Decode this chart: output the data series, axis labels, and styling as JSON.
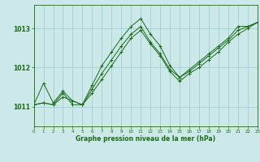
{
  "title": "Graphe pression niveau de la mer (hPa)",
  "xlabel": "Graphe pression niveau de la mer (hPa)",
  "bg_color": "#cce8e8",
  "grid_color": "#9fcfcf",
  "line_color": "#1a6b1a",
  "marker": "+",
  "xlim": [
    0,
    23
  ],
  "ylim": [
    1010.5,
    1013.6
  ],
  "yticks": [
    1011,
    1012,
    1013
  ],
  "xticks": [
    0,
    1,
    2,
    3,
    4,
    5,
    6,
    7,
    8,
    9,
    10,
    11,
    12,
    13,
    14,
    15,
    16,
    17,
    18,
    19,
    20,
    21,
    22,
    23
  ],
  "lines": [
    [
      [
        0,
        1011.05
      ],
      [
        1,
        1011.6
      ],
      [
        2,
        1011.1
      ],
      [
        3,
        1011.4
      ],
      [
        4,
        1011.15
      ],
      [
        5,
        1011.05
      ],
      [
        6,
        1011.55
      ],
      [
        7,
        1012.05
      ],
      [
        8,
        1012.4
      ],
      [
        9,
        1012.75
      ],
      [
        10,
        1013.05
      ],
      [
        11,
        1013.25
      ],
      [
        12,
        1012.85
      ],
      [
        13,
        1012.55
      ],
      [
        14,
        1012.05
      ],
      [
        15,
        1011.75
      ],
      [
        16,
        1011.95
      ],
      [
        17,
        1012.15
      ],
      [
        18,
        1012.35
      ],
      [
        19,
        1012.55
      ],
      [
        20,
        1012.75
      ],
      [
        21,
        1013.05
      ],
      [
        22,
        1013.05
      ],
      [
        23,
        1013.15
      ]
    ],
    [
      [
        0,
        1011.05
      ],
      [
        1,
        1011.1
      ],
      [
        2,
        1011.05
      ],
      [
        3,
        1011.35
      ],
      [
        4,
        1011.05
      ],
      [
        5,
        1011.05
      ],
      [
        6,
        1011.45
      ],
      [
        7,
        1011.85
      ],
      [
        8,
        1012.2
      ],
      [
        9,
        1012.55
      ],
      [
        10,
        1012.85
      ],
      [
        11,
        1013.05
      ],
      [
        12,
        1012.65
      ],
      [
        13,
        1012.35
      ],
      [
        14,
        1011.95
      ],
      [
        15,
        1011.75
      ],
      [
        16,
        1011.9
      ],
      [
        17,
        1012.1
      ],
      [
        18,
        1012.3
      ],
      [
        19,
        1012.5
      ],
      [
        20,
        1012.7
      ],
      [
        21,
        1012.95
      ],
      [
        22,
        1013.05
      ],
      [
        23,
        1013.15
      ]
    ],
    [
      [
        0,
        1011.05
      ],
      [
        1,
        1011.1
      ],
      [
        2,
        1011.05
      ],
      [
        3,
        1011.25
      ],
      [
        4,
        1011.15
      ],
      [
        5,
        1011.05
      ],
      [
        6,
        1011.35
      ],
      [
        7,
        1011.7
      ],
      [
        8,
        1012.05
      ],
      [
        9,
        1012.4
      ],
      [
        10,
        1012.75
      ],
      [
        11,
        1012.95
      ],
      [
        12,
        1012.6
      ],
      [
        13,
        1012.3
      ],
      [
        14,
        1011.9
      ],
      [
        15,
        1011.65
      ],
      [
        16,
        1011.85
      ],
      [
        17,
        1012.0
      ],
      [
        18,
        1012.2
      ],
      [
        19,
        1012.4
      ],
      [
        20,
        1012.65
      ],
      [
        21,
        1012.85
      ],
      [
        22,
        1013.0
      ],
      [
        23,
        1013.15
      ]
    ]
  ]
}
